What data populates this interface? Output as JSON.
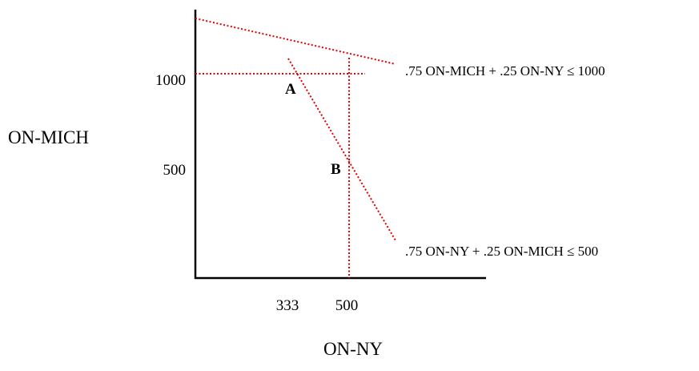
{
  "axes": {
    "x_label": "ON-NY",
    "y_label": "ON-MICH",
    "x_ticks": [
      "333",
      "500"
    ],
    "y_ticks": [
      "1000",
      "500"
    ]
  },
  "constraints": [
    {
      "label": ".75 ON-MICH + .25 ON-NY ≤ 1000"
    },
    {
      "label": ".75 ON-NY + .25 ON-MICH  ≤ 500"
    }
  ],
  "points": [
    {
      "label": "A"
    },
    {
      "label": "B"
    }
  ],
  "colors": {
    "axis": "#000000",
    "constraint_line": "#e00000",
    "text": "#000000"
  }
}
